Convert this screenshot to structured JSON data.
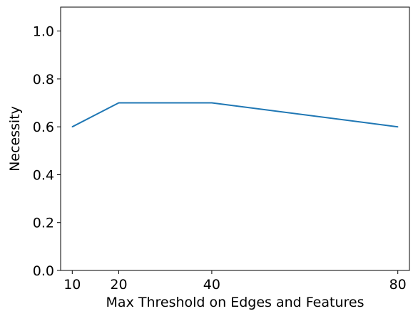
{
  "chart_data": {
    "type": "line",
    "title": "",
    "xlabel": "Max Threshold on Edges and Features",
    "ylabel": "Necessity",
    "x": [
      10,
      20,
      40,
      80
    ],
    "series": [
      {
        "values": [
          0.6,
          0.7,
          0.7,
          0.6
        ],
        "color": "#1f77b4"
      }
    ],
    "xlim": [
      7.5,
      82.5
    ],
    "ylim": [
      0.0,
      1.1
    ],
    "xticks": [
      10,
      20,
      40,
      80
    ],
    "xtick_labels": [
      "10",
      "20",
      "40",
      "80"
    ],
    "yticks": [
      0.0,
      0.2,
      0.4,
      0.6,
      0.8,
      1.0
    ],
    "ytick_labels": [
      "0.0",
      "0.2",
      "0.4",
      "0.6",
      "0.8",
      "1.0"
    ],
    "grid": false,
    "legend": "none"
  }
}
